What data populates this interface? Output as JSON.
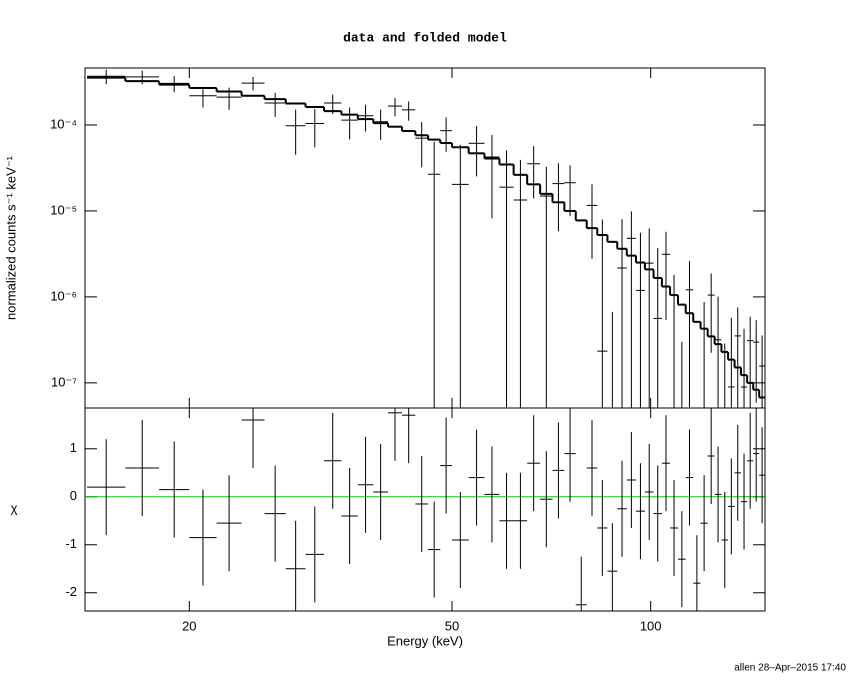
{
  "chart_data": {
    "type": "xspec",
    "title": "data and folded model",
    "xlabel": "Energy (keV)",
    "footer": "allen 28–Apr–2015 17:40",
    "log_x": true,
    "xlim": [
      13.9,
      149
    ],
    "xticks": [
      20,
      50,
      100
    ],
    "bins": [
      14,
      16,
      18,
      20,
      22,
      24,
      26,
      28,
      30,
      32,
      34,
      36,
      38,
      40,
      42,
      44,
      46,
      48,
      50,
      53,
      56,
      59,
      62,
      65,
      68,
      71,
      74,
      77,
      80,
      83,
      86,
      89,
      92,
      95,
      98,
      101,
      104,
      107,
      110,
      113,
      116,
      119,
      122,
      125,
      128,
      131,
      134,
      137,
      140,
      143,
      146,
      149
    ],
    "panels": [
      {
        "ylabel": "normalized counts s⁻¹ keV⁻¹",
        "log_y": true,
        "ylim": [
          5.1e-08,
          0.00046
        ],
        "yticks": [
          {
            "value": 0.0001,
            "label": "10⁻⁴"
          },
          {
            "value": 1e-05,
            "label": "10⁻⁵"
          },
          {
            "value": 1e-06,
            "label": "10⁻⁶"
          },
          {
            "value": 1e-07,
            "label": "10⁻⁷"
          }
        ],
        "series": [
          {
            "style": "errorbar",
            "color": "#000000",
            "values": [
              0.000369,
              0.000363,
              0.000305,
              0.000219,
              0.000211,
              0.000307,
              0.00018,
              9.8e-05,
              0.000104,
              0.00018,
              0.000114,
              0.000128,
              0.000109,
              0.000166,
              0.00015,
              7.02e-05,
              2.67e-05,
              8.58e-05,
              2.04e-05,
              6.12e-05,
              4.24e-05,
              1.89e-05,
              1.34e-05,
              3.54e-05,
              1.49e-05,
              2.08e-05,
              2.13e-05,
              -1.54e-05,
              1.16e-05,
              2.34e-07,
              -6.06e-06,
              2.17e-06,
              4.8e-06,
              1.19e-06,
              2.47e-06,
              5.62e-07,
              3.13e-06,
              -3.35e-07,
              -1.41e-06,
              1.21e-06,
              -1.56e-06,
              -1.16e-07,
              1.05e-06,
              3.17e-07,
              -2.9e-07,
              8.97e-08,
              3.52e-07,
              8.94e-08,
              3.1e-07,
              2.98e-07,
              1.57e-07
            ],
            "errors": [
              7.1e-05,
              6.5e-05,
              6.5e-05,
              5.9e-05,
              6.1e-05,
              5.5e-05,
              5.6e-05,
              5.3e-05,
              4.9e-05,
              4.6e-05,
              4.6e-05,
              4.4e-05,
              4.2e-05,
              4e-05,
              3.8e-05,
              3.8e-05,
              3.72e-05,
              3.7e-05,
              3.85e-05,
              3.6e-05,
              3.42e-05,
              3.16e-05,
              2.58e-05,
              2.14e-05,
              1.77e-05,
              1.5e-05,
              1.26e-05,
              1.03e-05,
              8.83e-06,
              7.72e-06,
              6.73e-06,
              5.84e-06,
              5.07e-06,
              4.39e-06,
              3.8e-06,
              3.14e-06,
              2.59e-06,
              2.13e-06,
              1.71e-06,
              1.4e-06,
              1.15e-06,
              9.86e-07,
              8.26e-07,
              6.91e-07,
              5.77e-07,
              4.82e-07,
              4.02e-07,
              3.36e-07,
              2.8e-07,
              2.39e-07,
              1.99e-07
            ]
          },
          {
            "style": "step",
            "color": "#000000",
            "values": [
              0.000355,
              0.000324,
              0.000295,
              0.000269,
              0.000245,
              0.000219,
              0.0002,
              0.000178,
              0.000162,
              0.000145,
              0.000132,
              0.000117,
              0.000105,
              9.55e-05,
              8.51e-05,
              7.59e-05,
              6.76e-05,
              6.17e-05,
              5.5e-05,
              4.68e-05,
              4.07e-05,
              3.47e-05,
              2.63e-05,
              2.04e-05,
              1.58e-05,
              1.26e-05,
              1e-05,
              7.76e-06,
              6.31e-06,
              5.25e-06,
              4.37e-06,
              3.63e-06,
              3.02e-06,
              2.51e-06,
              2.09e-06,
              1.66e-06,
              1.32e-06,
              1.05e-06,
              8.13e-07,
              6.46e-07,
              5.13e-07,
              4.27e-07,
              3.47e-07,
              2.82e-07,
              2.29e-07,
              1.86e-07,
              1.51e-07,
              1.23e-07,
              1e-07,
              8.32e-08,
              6.76e-08
            ]
          }
        ]
      },
      {
        "ylabel": "χ",
        "log_y": false,
        "ylim": [
          -2.38,
          1.85
        ],
        "yticks": [
          -2,
          -1,
          0,
          1
        ],
        "baseline": 0,
        "baseline_color": "#00cc00",
        "series": [
          {
            "style": "errorbar",
            "color": "#000000",
            "values": [
              0.2,
              0.6,
              0.15,
              -0.85,
              -0.55,
              1.6,
              -0.35,
              -1.5,
              -1.2,
              0.75,
              -0.4,
              0.25,
              0.1,
              1.75,
              1.7,
              -0.15,
              -1.1,
              0.65,
              -0.9,
              0.4,
              0.05,
              -0.5,
              -0.5,
              0.7,
              -0.05,
              0.55,
              0.9,
              -2.25,
              0.6,
              -0.65,
              -1.55,
              -0.25,
              0.35,
              -0.3,
              0.1,
              -0.35,
              0.7,
              -0.65,
              -1.3,
              0.4,
              -1.8,
              -0.55,
              0.85,
              0.05,
              -0.9,
              -0.2,
              0.5,
              -0.1,
              0.75,
              0.9,
              0.45
            ],
            "errors": [
              1,
              1,
              1,
              1,
              1,
              1,
              1,
              1,
              1,
              1,
              1,
              1,
              1,
              1,
              1,
              1,
              1,
              1,
              1,
              1,
              1,
              1,
              1,
              1,
              1,
              1,
              1,
              1,
              1,
              1,
              1,
              1,
              1,
              1,
              1,
              1,
              1,
              1,
              1,
              1,
              1,
              1,
              1,
              1,
              1,
              1,
              1,
              1,
              1,
              1,
              1
            ]
          }
        ]
      }
    ]
  }
}
